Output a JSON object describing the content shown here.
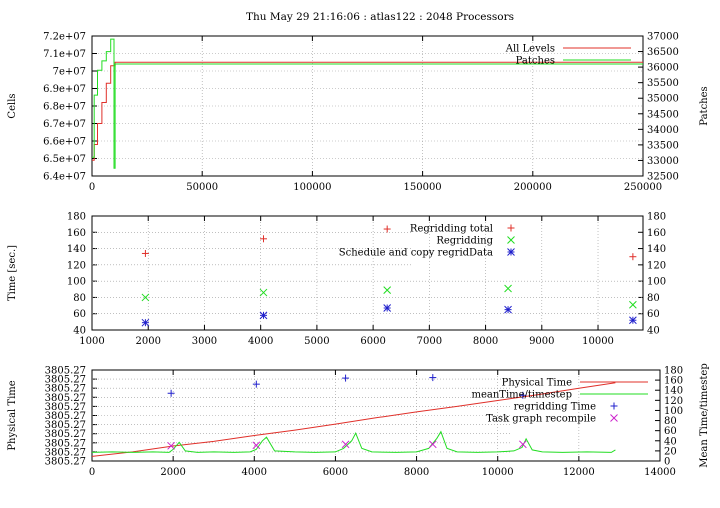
{
  "header": {
    "title": "Thu May 29 21:16:06 : atlas122 : 2048 Processors"
  },
  "colors": {
    "red": "#e0302a",
    "green": "#22dd22",
    "blue": "#2020cc",
    "purple": "#cc22cc",
    "grid": "#9a9a9a"
  },
  "chart_data": [
    {
      "type": "line",
      "ylabel": "Cells",
      "y2label": "Patches",
      "xlim": [
        0,
        250000
      ],
      "ylim": [
        64000000,
        72000000
      ],
      "y2lim": [
        32500,
        37000
      ],
      "x_ticks": [
        0,
        50000,
        100000,
        150000,
        200000,
        250000
      ],
      "y_ticks": [
        64000000,
        65000000,
        66000000,
        67000000,
        68000000,
        69000000,
        70000000,
        71000000,
        72000000
      ],
      "y_tick_labels": [
        "6.4e+07",
        "6.5e+07",
        "6.6e+07",
        "6.7e+07",
        "6.8e+07",
        "6.9e+07",
        "7e+07",
        "7.1e+07",
        "7.2e+07"
      ],
      "y2_ticks": [
        32500,
        33000,
        33500,
        34000,
        34500,
        35000,
        35500,
        36000,
        36500,
        37000
      ],
      "legend": "top-right",
      "series": [
        {
          "name": "All Levels",
          "axis": "left",
          "color": "#e0302a",
          "x": [
            0,
            1000,
            1000,
            2500,
            2500,
            4500,
            4500,
            6500,
            6500,
            8500,
            8500,
            10500,
            10500,
            250000
          ],
          "y": [
            64900000,
            64900000,
            65800000,
            65800000,
            67000000,
            67000000,
            68200000,
            68200000,
            69300000,
            69300000,
            70300000,
            70300000,
            70500000,
            70500000
          ]
        },
        {
          "name": "Patches",
          "axis": "right",
          "color": "#22dd22",
          "x": [
            0,
            1000,
            1000,
            2500,
            2500,
            4500,
            4500,
            6500,
            6500,
            8500,
            8500,
            10000,
            10000,
            10500,
            10500,
            250000
          ],
          "y": [
            33100,
            33100,
            35100,
            35100,
            35900,
            35900,
            36200,
            36200,
            36500,
            36500,
            36900,
            36900,
            32750,
            32750,
            36100,
            36100
          ]
        }
      ]
    },
    {
      "type": "scatter",
      "ylabel": "Time [sec.]",
      "xlim": [
        1000,
        10800
      ],
      "ylim": [
        40,
        180
      ],
      "y2lim": [
        40,
        180
      ],
      "x_ticks": [
        1000,
        2000,
        3000,
        4000,
        5000,
        6000,
        7000,
        8000,
        9000,
        10000
      ],
      "y_ticks": [
        40,
        60,
        80,
        100,
        120,
        140,
        160,
        180
      ],
      "legend": "top-right",
      "series": [
        {
          "name": "Regridding total",
          "marker": "plus",
          "color": "#e0302a",
          "x": [
            1950,
            4050,
            6250,
            10620
          ],
          "y": [
            134,
            152,
            164,
            130
          ]
        },
        {
          "name": "Regridding",
          "marker": "cross",
          "color": "#22dd22",
          "x": [
            1950,
            4050,
            6250,
            8400,
            10620
          ],
          "y": [
            80,
            86,
            89,
            91,
            71
          ]
        },
        {
          "name": "Schedule and copy regridData",
          "marker": "star",
          "color": "#2020cc",
          "x": [
            1950,
            4050,
            6250,
            8400,
            10620
          ],
          "y": [
            49,
            58,
            67,
            65,
            52
          ]
        }
      ]
    },
    {
      "type": "line",
      "ylabel": "Physical Time",
      "y2label": "Mean Time/timestep",
      "xlim": [
        0,
        14000
      ],
      "ylim": [
        0,
        10
      ],
      "y2lim": [
        0,
        180
      ],
      "x_ticks": [
        0,
        2000,
        4000,
        6000,
        8000,
        10000,
        12000,
        14000
      ],
      "y_tick_labels": [
        "3805.27",
        "3805.27",
        "3805.27",
        "3805.27",
        "3805.27",
        "3805.27",
        "3805.27",
        "3805.27",
        "3805.27",
        "3805.27",
        "3805.27"
      ],
      "y2_ticks": [
        0,
        20,
        40,
        60,
        80,
        100,
        120,
        140,
        160,
        180
      ],
      "legend": "top-right",
      "series": [
        {
          "name": "Physical Time",
          "axis": "left",
          "color": "#e0302a",
          "x": [
            0,
            1000,
            2000,
            3000,
            4000,
            5000,
            6000,
            7000,
            8000,
            9000,
            10000,
            11000,
            12000,
            12900
          ],
          "y": [
            0.5,
            1.0,
            1.65,
            2.15,
            2.8,
            3.4,
            4.05,
            4.75,
            5.4,
            6.0,
            6.65,
            7.3,
            8.0,
            8.6
          ]
        },
        {
          "name": "meanTime/timestep",
          "axis": "right",
          "color": "#22dd22",
          "x": [
            0,
            500,
            1000,
            1500,
            1900,
            2000,
            2150,
            2300,
            2600,
            3000,
            3500,
            3900,
            4050,
            4200,
            4300,
            4500,
            5000,
            5500,
            6000,
            6200,
            6400,
            6500,
            6650,
            6900,
            7500,
            8000,
            8300,
            8500,
            8600,
            8750,
            9000,
            9500,
            10000,
            10400,
            10600,
            10700,
            10850,
            11100,
            11600,
            12200,
            12800,
            12900
          ],
          "y": [
            17,
            18,
            17,
            18,
            17,
            23,
            37,
            20,
            17,
            18,
            17,
            18,
            23,
            40,
            47,
            20,
            18,
            17,
            18,
            25,
            40,
            55,
            25,
            18,
            17,
            18,
            25,
            45,
            58,
            25,
            18,
            17,
            18,
            20,
            27,
            44,
            22,
            18,
            17,
            18,
            17,
            22
          ]
        },
        {
          "name": "regridding Time",
          "marker": "plus",
          "axis": "right",
          "color": "#2020cc",
          "x": [
            1950,
            4050,
            6250,
            8400,
            10620
          ],
          "y": [
            134,
            152,
            164,
            165,
            130
          ]
        },
        {
          "name": "Task graph recompile",
          "marker": "cross",
          "axis": "right",
          "color": "#cc22cc",
          "x": [
            1950,
            4050,
            6250,
            8400,
            10620
          ],
          "y": [
            30,
            31,
            33,
            33,
            33
          ]
        }
      ]
    }
  ]
}
